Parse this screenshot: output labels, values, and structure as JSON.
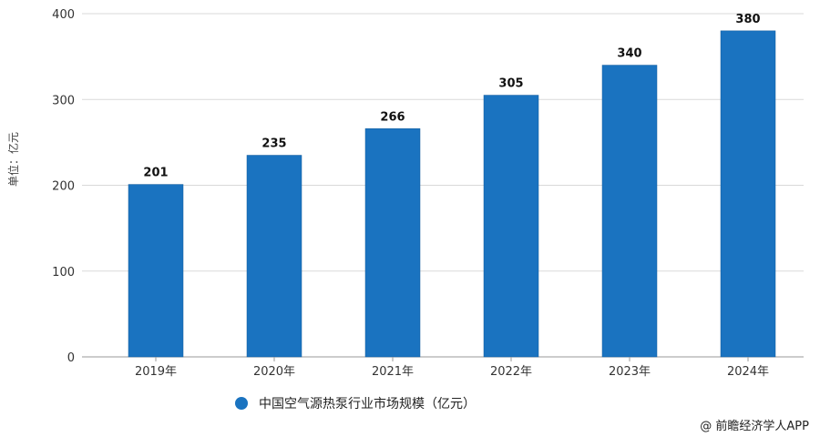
{
  "chart_data": {
    "type": "bar",
    "categories": [
      "2019年",
      "2020年",
      "2021年",
      "2022年",
      "2023年",
      "2024年"
    ],
    "series": [
      {
        "name": "中国空气源热泵行业市场规模（亿元）",
        "values": [
          201,
          235,
          266,
          305,
          340,
          380
        ]
      }
    ],
    "ylabel": "单位：亿元",
    "xlabel": "",
    "ylim": [
      0,
      400
    ],
    "yticks": [
      0,
      100,
      200,
      300,
      400
    ],
    "grid": true,
    "legend": "bottom",
    "bar_color": "#1a73c0"
  },
  "source": "@ 前瞻经济学人APP"
}
